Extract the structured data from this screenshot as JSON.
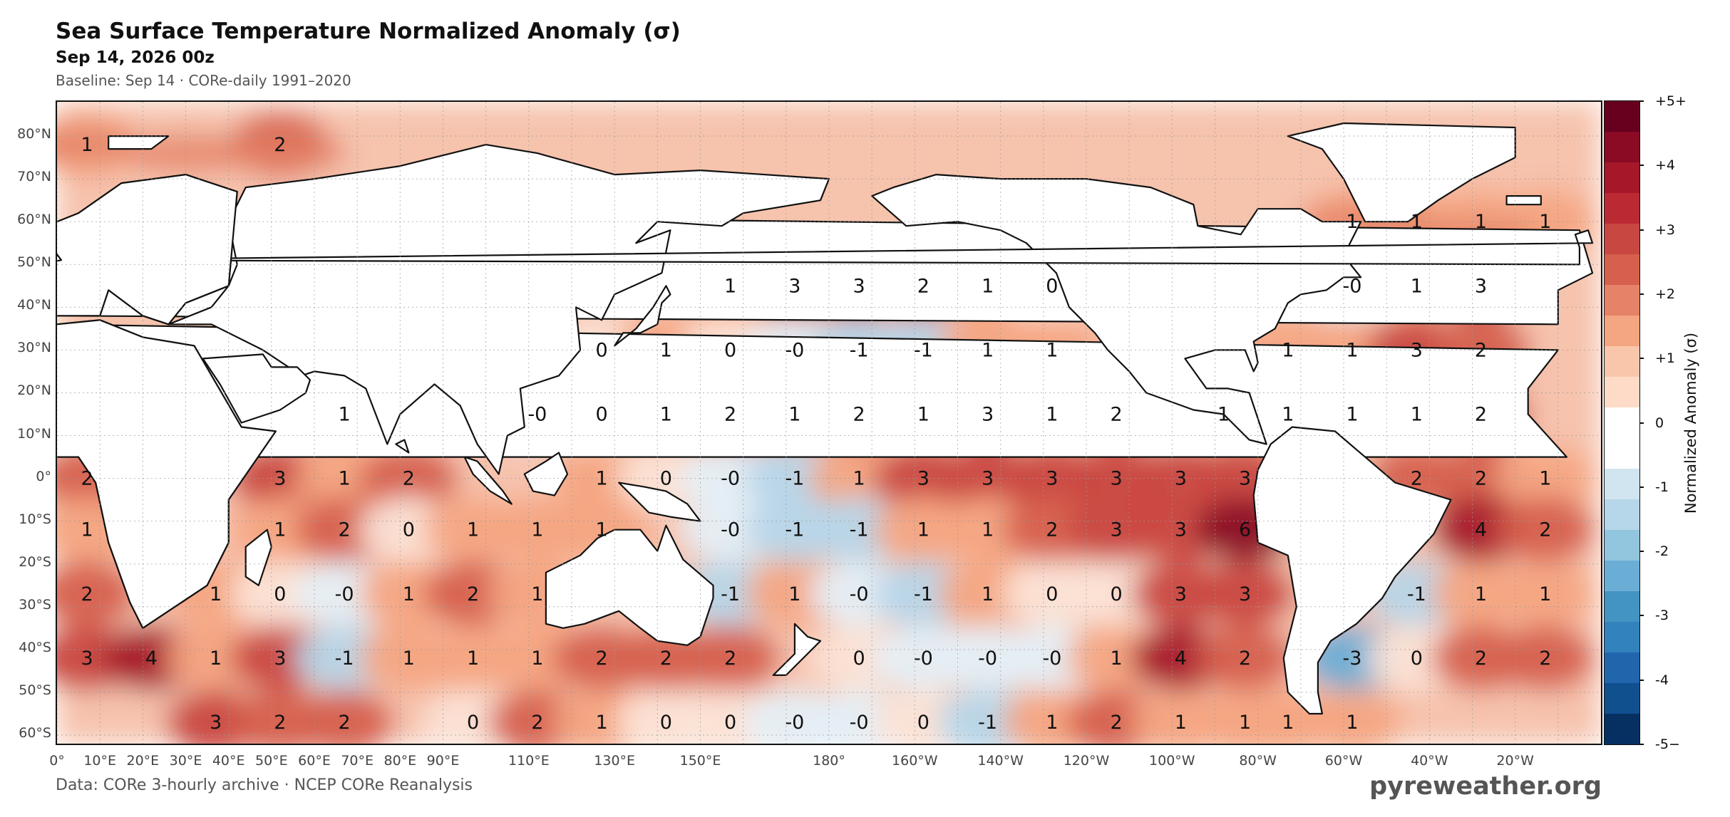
{
  "header": {
    "title": "Sea Surface Temperature Normalized Anomaly (σ)",
    "subtitle": "Sep 14, 2026 00z",
    "baseline": "Baseline: Sep 14 · CORe-daily 1991–2020"
  },
  "footer": {
    "source": "Data: CORe 3-hourly archive  ·  NCEP CORe Reanalysis",
    "brand": "pyreweather.org"
  },
  "axes": {
    "lat_labels": [
      "80°N",
      "70°N",
      "60°N",
      "50°N",
      "40°N",
      "30°N",
      "20°N",
      "10°N",
      "0°",
      "10°S",
      "20°S",
      "30°S",
      "40°S",
      "50°S",
      "60°S"
    ],
    "lon_labels": [
      "0°",
      "10°E",
      "20°E",
      "30°E",
      "40°E",
      "50°E",
      "60°E",
      "70°E",
      "80°E",
      "90°E",
      "110°E",
      "130°E",
      "150°E",
      "180°",
      "160°W",
      "140°W",
      "120°W",
      "100°W",
      "80°W",
      "60°W",
      "40°W",
      "20°W"
    ]
  },
  "colorbar": {
    "label": "Normalized Anomaly  (σ)",
    "ticks": [
      "+5+",
      "+4",
      "+3",
      "+2",
      "+1",
      "0",
      "-1",
      "-2",
      "-3",
      "-4",
      "-5−"
    ],
    "colors": [
      "#67001f",
      "#8b0a24",
      "#a6172a",
      "#bb2a33",
      "#c94741",
      "#d6604d",
      "#e58267",
      "#f4a582",
      "#f9c6ac",
      "#fddbc7",
      "#ffffff",
      "#ffffff",
      "#d1e5f0",
      "#b6d6e9",
      "#92c5de",
      "#6aaed6",
      "#4393c3",
      "#3282bd",
      "#2166ac",
      "#11508f",
      "#053061"
    ]
  },
  "map": {
    "sigma_annotations": [
      {
        "lon": 7,
        "lat": 78,
        "v": "1"
      },
      {
        "lon": 52,
        "lat": 78,
        "v": "2"
      },
      {
        "lon": 157,
        "lat": 45,
        "v": "1"
      },
      {
        "lon": 172,
        "lat": 45,
        "v": "3"
      },
      {
        "lon": 187,
        "lat": 45,
        "v": "3"
      },
      {
        "lon": 202,
        "lat": 45,
        "v": "2"
      },
      {
        "lon": 217,
        "lat": 45,
        "v": "1"
      },
      {
        "lon": 232,
        "lat": 45,
        "v": "0"
      },
      {
        "lon": 302,
        "lat": 45,
        "v": "-0"
      },
      {
        "lon": 317,
        "lat": 45,
        "v": "1"
      },
      {
        "lon": 332,
        "lat": 45,
        "v": "3"
      },
      {
        "lon": 302,
        "lat": 60,
        "v": "1"
      },
      {
        "lon": 317,
        "lat": 60,
        "v": "1"
      },
      {
        "lon": 332,
        "lat": 60,
        "v": "1"
      },
      {
        "lon": 347,
        "lat": 60,
        "v": "1"
      },
      {
        "lon": 127,
        "lat": 30,
        "v": "0"
      },
      {
        "lon": 142,
        "lat": 30,
        "v": "1"
      },
      {
        "lon": 157,
        "lat": 30,
        "v": "0"
      },
      {
        "lon": 172,
        "lat": 30,
        "v": "-0"
      },
      {
        "lon": 187,
        "lat": 30,
        "v": "-1"
      },
      {
        "lon": 202,
        "lat": 30,
        "v": "-1"
      },
      {
        "lon": 217,
        "lat": 30,
        "v": "1"
      },
      {
        "lon": 232,
        "lat": 30,
        "v": "1"
      },
      {
        "lon": 287,
        "lat": 30,
        "v": "1"
      },
      {
        "lon": 302,
        "lat": 30,
        "v": "1"
      },
      {
        "lon": 317,
        "lat": 30,
        "v": "3"
      },
      {
        "lon": 332,
        "lat": 30,
        "v": "2"
      },
      {
        "lon": 67,
        "lat": 15,
        "v": "1"
      },
      {
        "lon": 112,
        "lat": 15,
        "v": "-0"
      },
      {
        "lon": 127,
        "lat": 15,
        "v": "0"
      },
      {
        "lon": 142,
        "lat": 15,
        "v": "1"
      },
      {
        "lon": 157,
        "lat": 15,
        "v": "2"
      },
      {
        "lon": 172,
        "lat": 15,
        "v": "1"
      },
      {
        "lon": 187,
        "lat": 15,
        "v": "2"
      },
      {
        "lon": 202,
        "lat": 15,
        "v": "1"
      },
      {
        "lon": 217,
        "lat": 15,
        "v": "3"
      },
      {
        "lon": 232,
        "lat": 15,
        "v": "1"
      },
      {
        "lon": 247,
        "lat": 15,
        "v": "2"
      },
      {
        "lon": 272,
        "lat": 15,
        "v": "1"
      },
      {
        "lon": 287,
        "lat": 15,
        "v": "1"
      },
      {
        "lon": 302,
        "lat": 15,
        "v": "1"
      },
      {
        "lon": 317,
        "lat": 15,
        "v": "1"
      },
      {
        "lon": 332,
        "lat": 15,
        "v": "2"
      },
      {
        "lon": 7,
        "lat": 0,
        "v": "2"
      },
      {
        "lon": 52,
        "lat": 0,
        "v": "3"
      },
      {
        "lon": 67,
        "lat": 0,
        "v": "1"
      },
      {
        "lon": 82,
        "lat": 0,
        "v": "2"
      },
      {
        "lon": 127,
        "lat": 0,
        "v": "1"
      },
      {
        "lon": 142,
        "lat": 0,
        "v": "0"
      },
      {
        "lon": 157,
        "lat": 0,
        "v": "-0"
      },
      {
        "lon": 172,
        "lat": 0,
        "v": "-1"
      },
      {
        "lon": 187,
        "lat": 0,
        "v": "1"
      },
      {
        "lon": 202,
        "lat": 0,
        "v": "3"
      },
      {
        "lon": 217,
        "lat": 0,
        "v": "3"
      },
      {
        "lon": 232,
        "lat": 0,
        "v": "3"
      },
      {
        "lon": 247,
        "lat": 0,
        "v": "3"
      },
      {
        "lon": 262,
        "lat": 0,
        "v": "3"
      },
      {
        "lon": 277,
        "lat": 0,
        "v": "3"
      },
      {
        "lon": 317,
        "lat": 0,
        "v": "2"
      },
      {
        "lon": 332,
        "lat": 0,
        "v": "2"
      },
      {
        "lon": 347,
        "lat": 0,
        "v": "1"
      },
      {
        "lon": 7,
        "lat": -12,
        "v": "1"
      },
      {
        "lon": 52,
        "lat": -12,
        "v": "1"
      },
      {
        "lon": 67,
        "lat": -12,
        "v": "2"
      },
      {
        "lon": 82,
        "lat": -12,
        "v": "0"
      },
      {
        "lon": 97,
        "lat": -12,
        "v": "1"
      },
      {
        "lon": 112,
        "lat": -12,
        "v": "1"
      },
      {
        "lon": 127,
        "lat": -12,
        "v": "1"
      },
      {
        "lon": 157,
        "lat": -12,
        "v": "-0"
      },
      {
        "lon": 172,
        "lat": -12,
        "v": "-1"
      },
      {
        "lon": 187,
        "lat": -12,
        "v": "-1"
      },
      {
        "lon": 202,
        "lat": -12,
        "v": "1"
      },
      {
        "lon": 217,
        "lat": -12,
        "v": "1"
      },
      {
        "lon": 232,
        "lat": -12,
        "v": "2"
      },
      {
        "lon": 247,
        "lat": -12,
        "v": "3"
      },
      {
        "lon": 262,
        "lat": -12,
        "v": "3"
      },
      {
        "lon": 277,
        "lat": -12,
        "v": "6"
      },
      {
        "lon": 332,
        "lat": -12,
        "v": "4"
      },
      {
        "lon": 347,
        "lat": -12,
        "v": "2"
      },
      {
        "lon": 7,
        "lat": -27,
        "v": "2"
      },
      {
        "lon": 37,
        "lat": -27,
        "v": "1"
      },
      {
        "lon": 52,
        "lat": -27,
        "v": "0"
      },
      {
        "lon": 67,
        "lat": -27,
        "v": "-0"
      },
      {
        "lon": 82,
        "lat": -27,
        "v": "1"
      },
      {
        "lon": 97,
        "lat": -27,
        "v": "2"
      },
      {
        "lon": 112,
        "lat": -27,
        "v": "1"
      },
      {
        "lon": 157,
        "lat": -27,
        "v": "-1"
      },
      {
        "lon": 172,
        "lat": -27,
        "v": "1"
      },
      {
        "lon": 187,
        "lat": -27,
        "v": "-0"
      },
      {
        "lon": 202,
        "lat": -27,
        "v": "-1"
      },
      {
        "lon": 217,
        "lat": -27,
        "v": "1"
      },
      {
        "lon": 232,
        "lat": -27,
        "v": "0"
      },
      {
        "lon": 247,
        "lat": -27,
        "v": "0"
      },
      {
        "lon": 262,
        "lat": -27,
        "v": "3"
      },
      {
        "lon": 277,
        "lat": -27,
        "v": "3"
      },
      {
        "lon": 317,
        "lat": -27,
        "v": "-1"
      },
      {
        "lon": 332,
        "lat": -27,
        "v": "1"
      },
      {
        "lon": 347,
        "lat": -27,
        "v": "1"
      },
      {
        "lon": 7,
        "lat": -42,
        "v": "3"
      },
      {
        "lon": 22,
        "lat": -42,
        "v": "4"
      },
      {
        "lon": 37,
        "lat": -42,
        "v": "1"
      },
      {
        "lon": 52,
        "lat": -42,
        "v": "3"
      },
      {
        "lon": 67,
        "lat": -42,
        "v": "-1"
      },
      {
        "lon": 82,
        "lat": -42,
        "v": "1"
      },
      {
        "lon": 97,
        "lat": -42,
        "v": "1"
      },
      {
        "lon": 112,
        "lat": -42,
        "v": "1"
      },
      {
        "lon": 127,
        "lat": -42,
        "v": "2"
      },
      {
        "lon": 142,
        "lat": -42,
        "v": "2"
      },
      {
        "lon": 157,
        "lat": -42,
        "v": "2"
      },
      {
        "lon": 187,
        "lat": -42,
        "v": "0"
      },
      {
        "lon": 202,
        "lat": -42,
        "v": "-0"
      },
      {
        "lon": 217,
        "lat": -42,
        "v": "-0"
      },
      {
        "lon": 232,
        "lat": -42,
        "v": "-0"
      },
      {
        "lon": 247,
        "lat": -42,
        "v": "1"
      },
      {
        "lon": 262,
        "lat": -42,
        "v": "4"
      },
      {
        "lon": 277,
        "lat": -42,
        "v": "2"
      },
      {
        "lon": 302,
        "lat": -42,
        "v": "-3"
      },
      {
        "lon": 317,
        "lat": -42,
        "v": "0"
      },
      {
        "lon": 332,
        "lat": -42,
        "v": "2"
      },
      {
        "lon": 347,
        "lat": -42,
        "v": "2"
      },
      {
        "lon": 37,
        "lat": -57,
        "v": "3"
      },
      {
        "lon": 52,
        "lat": -57,
        "v": "2"
      },
      {
        "lon": 67,
        "lat": -57,
        "v": "2"
      },
      {
        "lon": 97,
        "lat": -57,
        "v": "0"
      },
      {
        "lon": 112,
        "lat": -57,
        "v": "2"
      },
      {
        "lon": 127,
        "lat": -57,
        "v": "1"
      },
      {
        "lon": 142,
        "lat": -57,
        "v": "0"
      },
      {
        "lon": 157,
        "lat": -57,
        "v": "0"
      },
      {
        "lon": 172,
        "lat": -57,
        "v": "-0"
      },
      {
        "lon": 187,
        "lat": -57,
        "v": "-0"
      },
      {
        "lon": 202,
        "lat": -57,
        "v": "0"
      },
      {
        "lon": 217,
        "lat": -57,
        "v": "-1"
      },
      {
        "lon": 232,
        "lat": -57,
        "v": "1"
      },
      {
        "lon": 247,
        "lat": -57,
        "v": "2"
      },
      {
        "lon": 262,
        "lat": -57,
        "v": "1"
      },
      {
        "lon": 277,
        "lat": -57,
        "v": "1"
      },
      {
        "lon": 287,
        "lat": -57,
        "v": "1"
      },
      {
        "lon": 302,
        "lat": -57,
        "v": "1"
      }
    ]
  }
}
